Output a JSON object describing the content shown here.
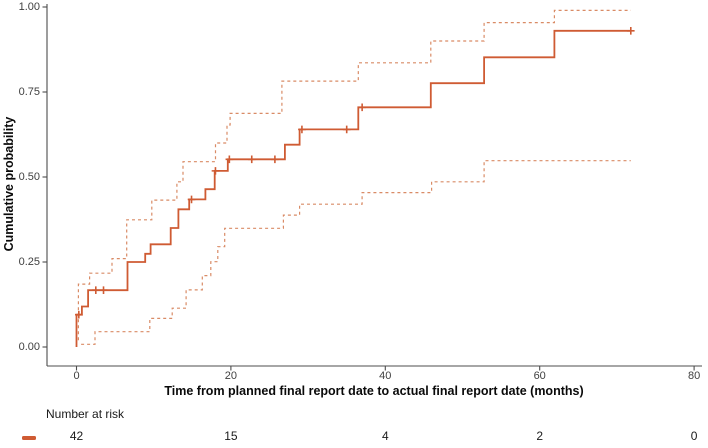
{
  "figure": {
    "kind": "kaplan-meier cumulative incidence plot with 95% CI bands and number-at-risk table"
  },
  "colors": {
    "curve": "#cf5b33",
    "ci_band": "#d98b66",
    "axis_line": "#4d4d4d",
    "tick_text": "#404040",
    "title_text": "#0a0a0a"
  },
  "chart_data": {
    "type": "line",
    "subtype": "step-function survival estimate with dashed confidence bands",
    "title": "",
    "xlabel": "Time from planned final report date to actual final report date (months)",
    "ylabel": "Cumulative probability",
    "xlim": [
      0,
      80
    ],
    "ylim": [
      0,
      1
    ],
    "x_ticks": [
      0,
      20,
      40,
      60,
      80
    ],
    "y_ticks": [
      0,
      0.25,
      0.5,
      0.75,
      1
    ],
    "y_tick_labels": [
      "0.00",
      "0.25",
      "0.50",
      "0.75",
      "1.00"
    ],
    "grid": false,
    "legend_position": "none",
    "curve_end_month": 71.8,
    "series": [
      {
        "name": "cumulative-probability-estimate",
        "line": "solid",
        "color": "#cf5b33",
        "width": 1.8,
        "steps": [
          [
            0,
            0
          ],
          [
            0,
            0.095
          ],
          [
            0.7,
            0.119
          ],
          [
            1.5,
            0.167
          ],
          [
            6.6,
            0.25
          ],
          [
            8.9,
            0.274
          ],
          [
            9.6,
            0.302
          ],
          [
            12.2,
            0.35
          ],
          [
            13.2,
            0.405
          ],
          [
            14.6,
            0.434
          ],
          [
            16.7,
            0.464
          ],
          [
            17.9,
            0.518
          ],
          [
            19.6,
            0.552
          ],
          [
            27,
            0.595
          ],
          [
            28.9,
            0.64
          ],
          [
            36.5,
            0.705
          ],
          [
            45.9,
            0.776
          ],
          [
            52.8,
            0.852
          ],
          [
            61.9,
            0.93
          ]
        ]
      },
      {
        "name": "upper-95ci",
        "line": "dashed",
        "color": "#d98b66",
        "width": 1.2,
        "steps": [
          [
            0.25,
            0.02
          ],
          [
            0.25,
            0.185
          ],
          [
            1.7,
            0.217
          ],
          [
            4.6,
            0.26
          ],
          [
            6.5,
            0.374
          ],
          [
            9.75,
            0.432
          ],
          [
            13,
            0.486
          ],
          [
            13.8,
            0.545
          ],
          [
            18,
            0.6
          ],
          [
            19.5,
            0.653
          ],
          [
            19.9,
            0.687
          ],
          [
            26.6,
            0.782
          ],
          [
            36.5,
            0.836
          ],
          [
            45.9,
            0.9
          ],
          [
            52.8,
            0.954
          ],
          [
            61.9,
            0.99
          ]
        ]
      },
      {
        "name": "lower-95ci",
        "line": "dashed",
        "color": "#d98b66",
        "width": 1.2,
        "steps": [
          [
            0.6,
            0.008
          ],
          [
            2.4,
            0.045
          ],
          [
            9.5,
            0.084
          ],
          [
            12.4,
            0.114
          ],
          [
            14.2,
            0.168
          ],
          [
            16.3,
            0.21
          ],
          [
            17.4,
            0.251
          ],
          [
            18.3,
            0.295
          ],
          [
            19.2,
            0.349
          ],
          [
            26.8,
            0.388
          ],
          [
            28.9,
            0.42
          ],
          [
            37,
            0.454
          ],
          [
            46,
            0.486
          ],
          [
            52.8,
            0.548
          ]
        ]
      }
    ],
    "censor_marks": [
      [
        0.3,
        0.095
      ],
      [
        2.5,
        0.167
      ],
      [
        3.5,
        0.167
      ],
      [
        14.9,
        0.434
      ],
      [
        18,
        0.518
      ],
      [
        19.8,
        0.552
      ],
      [
        22.7,
        0.552
      ],
      [
        25.7,
        0.552
      ],
      [
        29.2,
        0.64
      ],
      [
        35,
        0.64
      ],
      [
        37,
        0.705
      ],
      [
        71.8,
        0.93
      ]
    ],
    "risk_table": {
      "title": "Number at risk",
      "times": [
        0,
        20,
        40,
        60,
        80
      ],
      "counts": [
        42,
        15,
        4,
        2,
        0
      ],
      "marker_color": "#cf5b33"
    }
  }
}
